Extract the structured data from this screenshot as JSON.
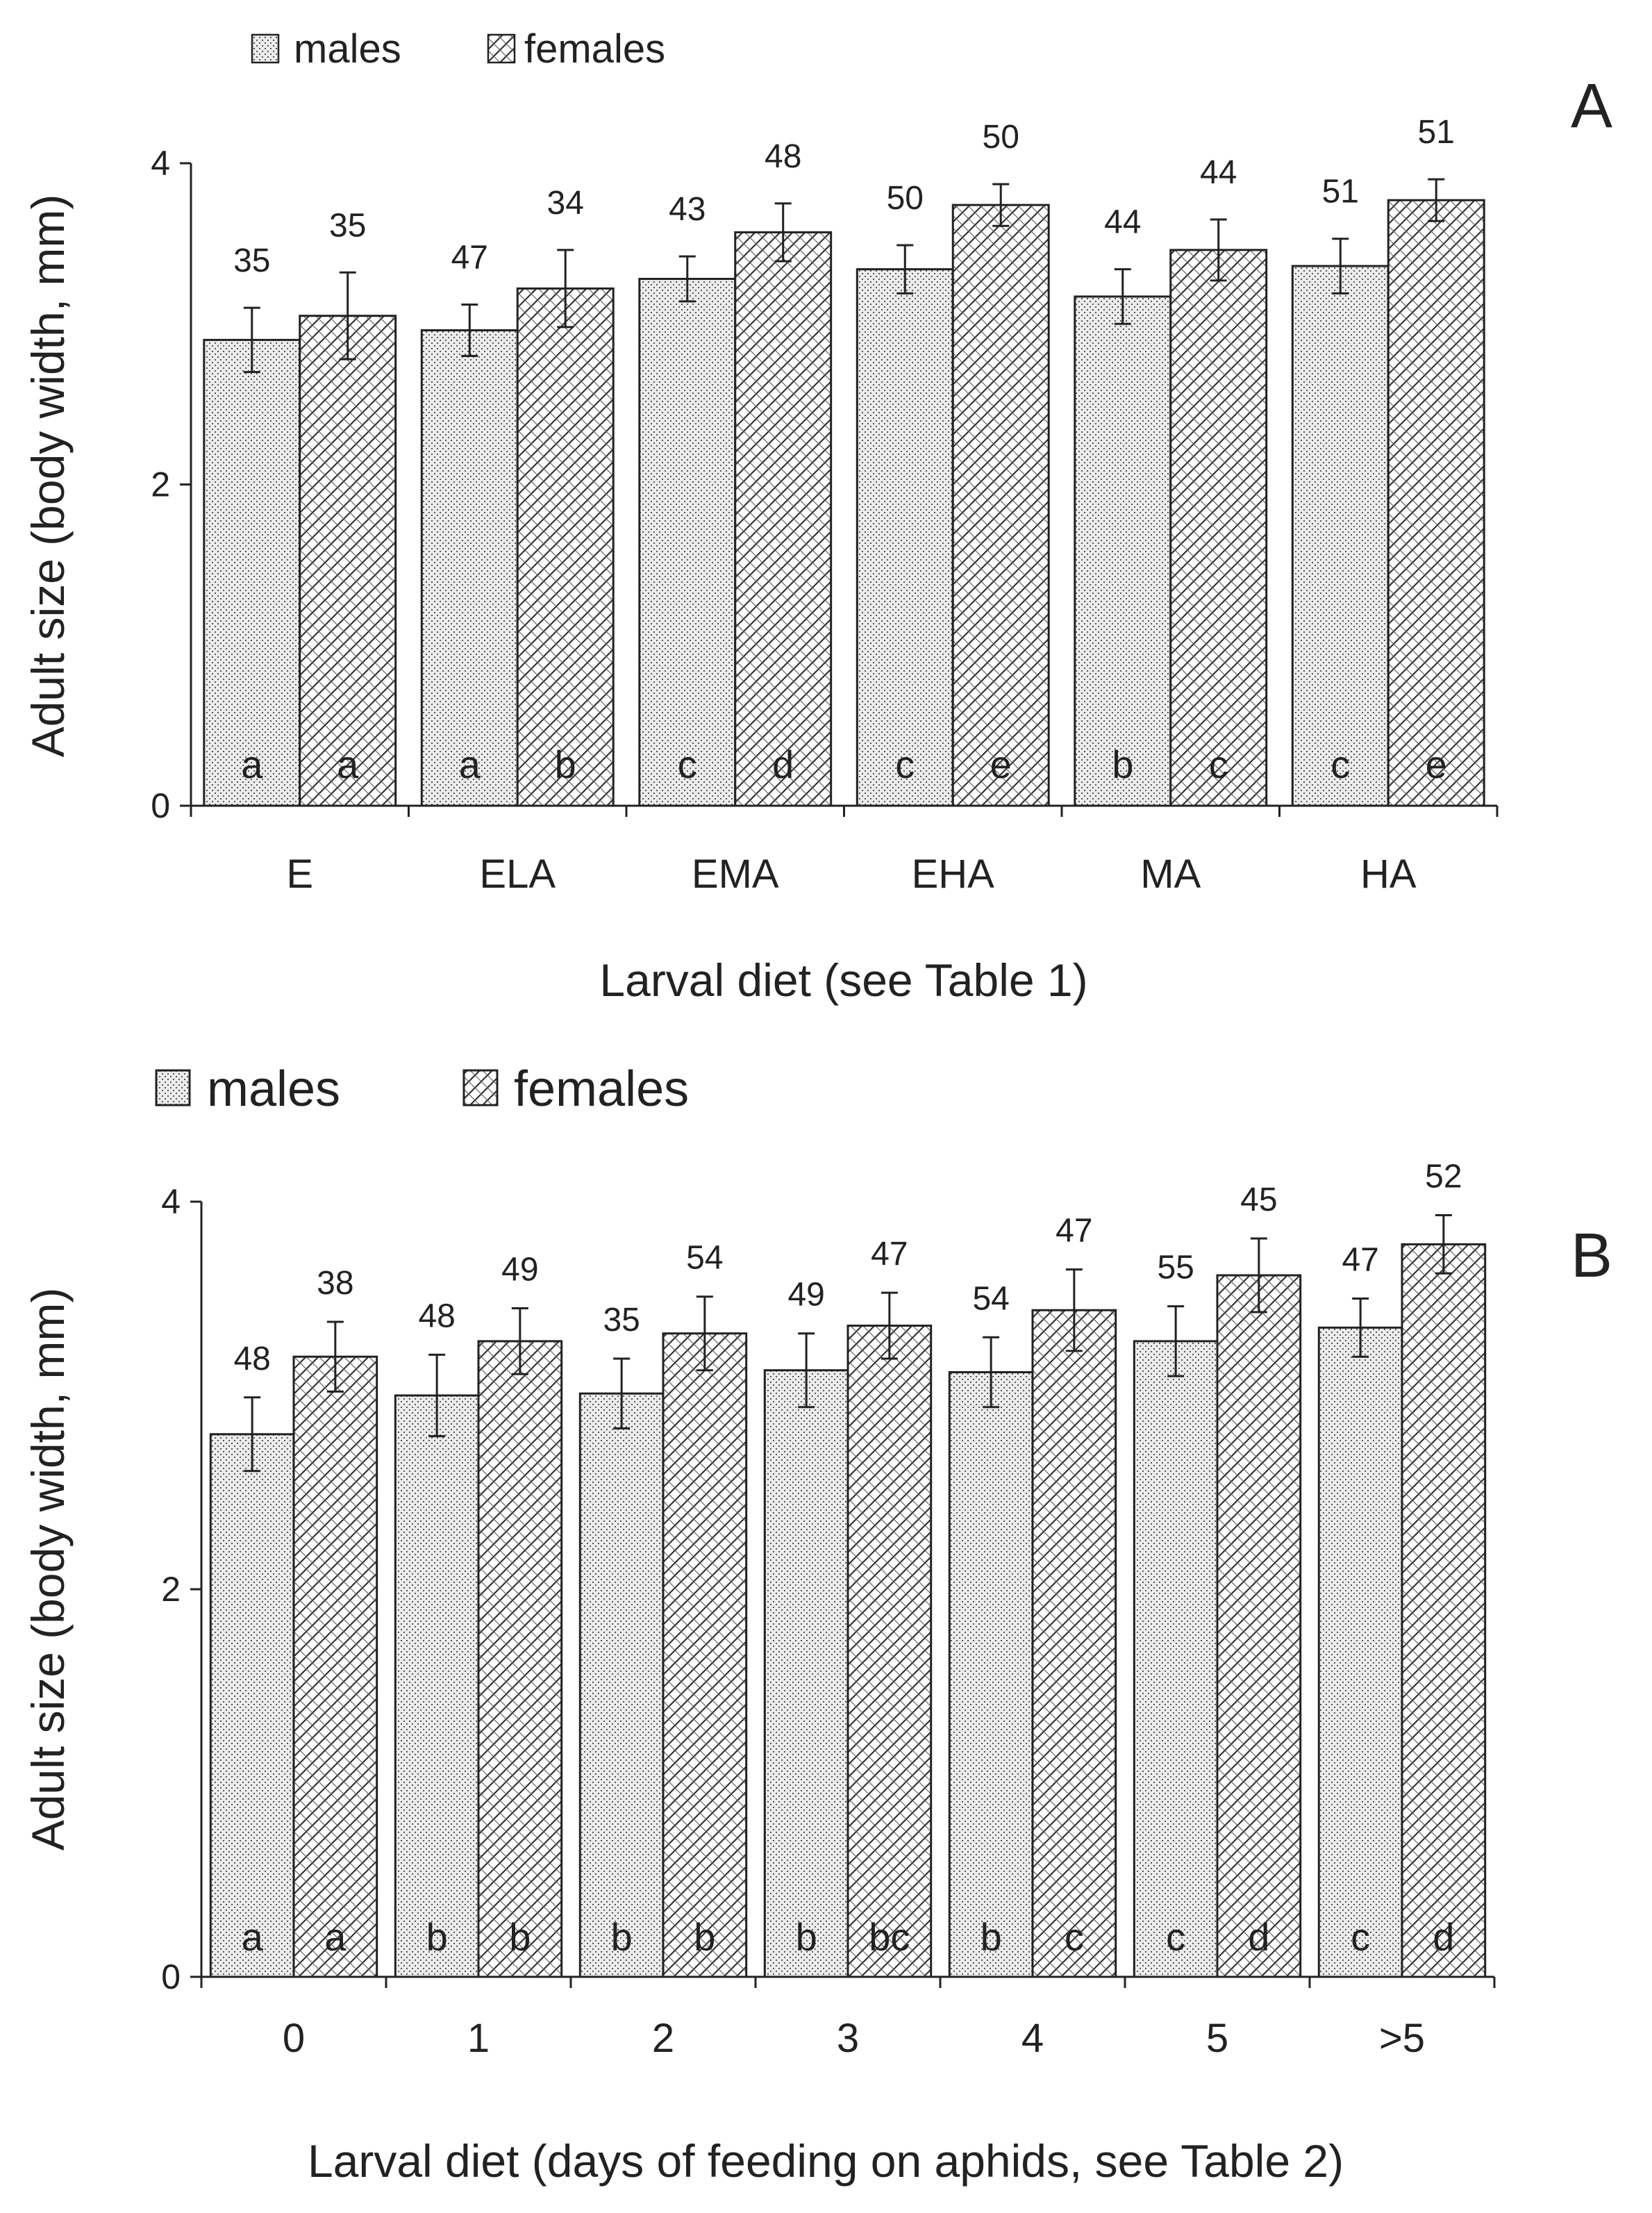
{
  "chart_data": [
    {
      "type": "bar",
      "panel": "A",
      "xlabel": "Larval diet (see Table 1)",
      "ylabel": "Adult size (body width, mm)",
      "ylim": [
        0,
        4
      ],
      "yticks": [
        "0",
        "2",
        "4"
      ],
      "legend": {
        "position": "top-left",
        "entries": [
          "males",
          "females"
        ]
      },
      "categories": [
        "E",
        "ELA",
        "EMA",
        "EHA",
        "MA",
        "HA"
      ],
      "series": [
        {
          "name": "males",
          "pattern": "dots",
          "values": [
            2.9,
            2.96,
            3.28,
            3.34,
            3.17,
            3.36
          ],
          "errors": [
            0.2,
            0.16,
            0.14,
            0.15,
            0.17,
            0.17
          ],
          "n": [
            "35",
            "47",
            "43",
            "50",
            "44",
            "51"
          ],
          "letters": [
            "a",
            "a",
            "c",
            "c",
            "b",
            "c"
          ]
        },
        {
          "name": "females",
          "pattern": "hatch",
          "values": [
            3.05,
            3.22,
            3.57,
            3.74,
            3.46,
            3.77
          ],
          "errors": [
            0.27,
            0.24,
            0.18,
            0.13,
            0.19,
            0.13
          ],
          "n": [
            "35",
            "34",
            "48",
            "50",
            "44",
            "51"
          ],
          "letters": [
            "a",
            "b",
            "d",
            "e",
            "c",
            "e"
          ]
        }
      ]
    },
    {
      "type": "bar",
      "panel": "B",
      "xlabel": "Larval diet (days of feeding on aphids, see Table 2)",
      "ylabel": "Adult size (body width, mm)",
      "ylim": [
        0,
        4
      ],
      "yticks": [
        "0",
        "2",
        "4"
      ],
      "legend": {
        "position": "top-left",
        "entries": [
          "males",
          "females"
        ]
      },
      "categories": [
        "0",
        "1",
        "2",
        "3",
        "4",
        "5",
        ">5"
      ],
      "series": [
        {
          "name": "males",
          "pattern": "dots",
          "values": [
            2.8,
            3.0,
            3.01,
            3.13,
            3.12,
            3.28,
            3.35
          ],
          "errors": [
            0.19,
            0.21,
            0.18,
            0.19,
            0.18,
            0.18,
            0.15
          ],
          "n": [
            "48",
            "48",
            "35",
            "49",
            "54",
            "55",
            "47"
          ],
          "letters": [
            "a",
            "b",
            "b",
            "b",
            "b",
            "c",
            "c"
          ]
        },
        {
          "name": "females",
          "pattern": "hatch",
          "values": [
            3.2,
            3.28,
            3.32,
            3.36,
            3.44,
            3.62,
            3.78
          ],
          "errors": [
            0.18,
            0.17,
            0.19,
            0.17,
            0.21,
            0.19,
            0.15
          ],
          "n": [
            "38",
            "49",
            "54",
            "47",
            "47",
            "45",
            "52"
          ],
          "letters": [
            "a",
            "b",
            "b",
            "bc",
            "c",
            "d",
            "d"
          ]
        }
      ]
    }
  ]
}
